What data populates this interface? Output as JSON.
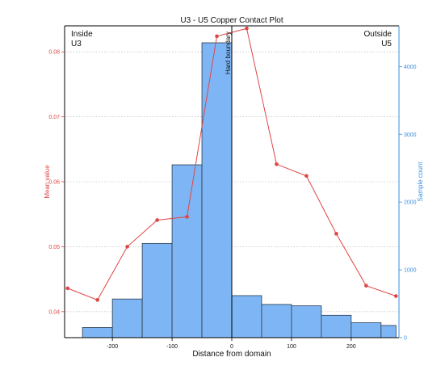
{
  "chart_data": {
    "type": "bar+line",
    "title": "U3 - U5 Copper Contact Plot",
    "xlabel": "Distance from domain",
    "ylabel_left": "Mean value",
    "ylabel_right": "Sample count",
    "xlim": [
      -280,
      280
    ],
    "ylim_left": [
      0.036,
      0.084
    ],
    "ylim_right": [
      0,
      4600
    ],
    "x_ticks": [
      -200,
      -100,
      0,
      100,
      200
    ],
    "left_ticks": [
      0.04,
      0.05,
      0.06,
      0.07,
      0.08
    ],
    "right_ticks": [
      0,
      1000,
      2000,
      3000,
      4000
    ],
    "colors": {
      "mean": "#e04545",
      "bars": "#7eb6f5",
      "bar_edge": "#2b3a4a"
    },
    "grid": "horizontal dotted",
    "boundary_label": "Hard boundary",
    "left_corner": [
      "Inside",
      "U3"
    ],
    "right_corner": [
      "Outside",
      "U5"
    ],
    "histogram": {
      "bin_edges": [
        -275,
        -250,
        -200,
        -150,
        -100,
        -50,
        0,
        50,
        100,
        150,
        200,
        250,
        275
      ],
      "counts": [
        0,
        150,
        570,
        1390,
        2550,
        4350,
        620,
        490,
        470,
        330,
        220,
        180
      ]
    },
    "series": [
      {
        "name": "Mean value",
        "x": [
          -275,
          -225,
          -175,
          -125,
          -75,
          -25,
          25,
          75,
          125,
          175,
          225,
          275
        ],
        "values": [
          0.0436,
          0.0418,
          0.05,
          0.0541,
          0.0546,
          0.0824,
          0.0836,
          0.0627,
          0.0609,
          0.052,
          0.044,
          0.0424
        ]
      }
    ]
  }
}
